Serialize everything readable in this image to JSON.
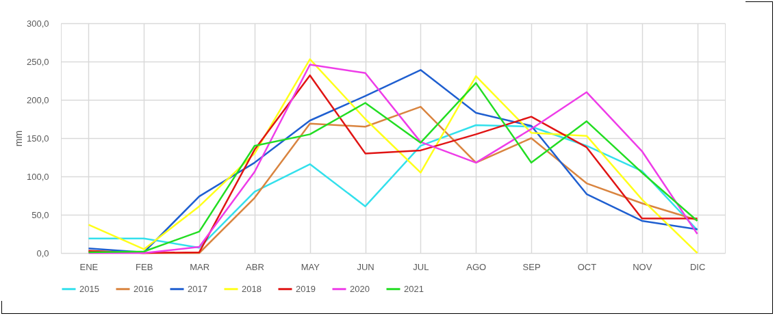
{
  "chart_data": {
    "type": "line",
    "ylabel": "mm",
    "categories": [
      "ENE",
      "FEB",
      "MAR",
      "ABR",
      "MAY",
      "JUN",
      "JUL",
      "AGO",
      "SEP",
      "OCT",
      "NOV",
      "DIC"
    ],
    "series": [
      {
        "name": "2015",
        "color": "#33e0ec",
        "values": [
          19,
          19,
          7,
          80,
          116,
          61,
          140,
          167,
          165,
          140,
          107,
          30
        ]
      },
      {
        "name": "2016",
        "color": "#d9843f",
        "values": [
          2,
          0,
          0,
          72,
          169,
          165,
          191,
          118,
          150,
          91,
          65,
          43
        ]
      },
      {
        "name": "2017",
        "color": "#1f5fd0",
        "values": [
          6,
          1,
          74,
          118,
          173,
          205,
          239,
          183,
          166,
          77,
          42,
          31
        ]
      },
      {
        "name": "2018",
        "color": "#ffff1a",
        "values": [
          37,
          5,
          61,
          130,
          253,
          175,
          105,
          231,
          157,
          153,
          70,
          0
        ]
      },
      {
        "name": "2019",
        "color": "#e01414",
        "values": [
          3,
          0,
          1,
          135,
          232,
          130,
          134,
          155,
          178,
          138,
          45,
          45
        ]
      },
      {
        "name": "2020",
        "color": "#ee3ce8",
        "values": [
          0,
          0,
          8,
          106,
          246,
          235,
          145,
          118,
          162,
          210,
          133,
          25
        ]
      },
      {
        "name": "2021",
        "color": "#22dd22",
        "values": [
          1,
          2,
          28,
          140,
          155,
          196,
          144,
          222,
          118,
          172,
          105,
          42
        ]
      }
    ],
    "ylim": [
      0,
      300
    ],
    "yticks": [
      {
        "value": 0,
        "label": "0,0"
      },
      {
        "value": 50,
        "label": "50,0"
      },
      {
        "value": 100,
        "label": "100,0"
      },
      {
        "value": 150,
        "label": "150,0"
      },
      {
        "value": 200,
        "label": "200,0"
      },
      {
        "value": 250,
        "label": "250,0"
      },
      {
        "value": 300,
        "label": "300,0"
      }
    ],
    "grid": true,
    "legend": "bottom",
    "marker": "none",
    "line_style": "solid"
  }
}
